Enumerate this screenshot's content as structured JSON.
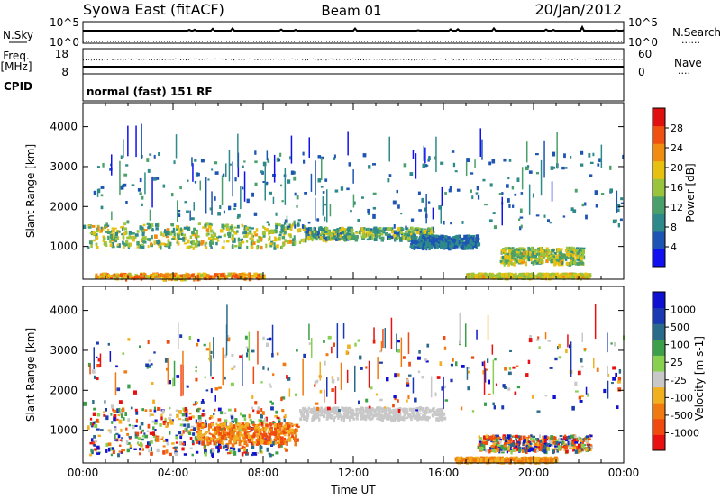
{
  "header": {
    "station": "Syowa East (fitACF)",
    "beam": "Beam 01",
    "date": "20/Jan/2012"
  },
  "nsky_panel": {
    "left_label": "N.Sky",
    "left_ticks": [
      "10^5",
      "10^0"
    ],
    "right_ticks": [
      "10^5",
      "10^0"
    ],
    "right_label": "N.Search",
    "right_legend": "......"
  },
  "freq_panel": {
    "left_label_1": "Freq.",
    "left_label_2": "[MHz]",
    "left_ticks": [
      "18",
      "8"
    ],
    "right_ticks": [
      "60",
      "0"
    ],
    "right_label": "Nave",
    "right_legend": "...."
  },
  "cpid_panel": {
    "label": "CPID",
    "mode_text": "normal (fast) 151 RF"
  },
  "x_axis": {
    "label": "Time UT",
    "ticks": [
      "00:00",
      "04:00",
      "08:00",
      "12:00",
      "16:00",
      "20:00",
      "00:00"
    ],
    "range_hours": [
      0,
      24
    ]
  },
  "colors": {
    "power": [
      "#1010f0",
      "#1e55b4",
      "#2e8a8a",
      "#4aa06a",
      "#9ac43c",
      "#e8c010",
      "#f08c10",
      "#f05010",
      "#e01010"
    ],
    "velocity": [
      "#e81010",
      "#f04a10",
      "#f07a10",
      "#f0b020",
      "#c8c8c8",
      "#88d050",
      "#3ca04a",
      "#2a6a8a",
      "#1a3ab4",
      "#1010d0"
    ]
  },
  "chart_data": [
    {
      "type": "heatmap",
      "title": "",
      "xlabel": "",
      "ylabel": "Slant Range [km]",
      "x_range_hours": [
        0,
        24
      ],
      "ylim": [
        180,
        4600
      ],
      "yticks": [
        "1000",
        "2000",
        "3000",
        "4000"
      ],
      "yticks_values": [
        1000,
        2000,
        3000,
        4000
      ],
      "colorbar": {
        "label": "Power [dB]",
        "range": [
          0,
          32
        ],
        "ticks": [
          "4",
          "8",
          "12",
          "16",
          "20",
          "24",
          "28"
        ],
        "tick_values": [
          4,
          8,
          12,
          16,
          20,
          24,
          28
        ]
      },
      "series": [
        {
          "x": [
            0.2,
            9.8
          ],
          "y": [
            1000,
            1600
          ],
          "values": [
            8,
            22
          ]
        },
        {
          "x": [
            0.5,
            8.0
          ],
          "y": [
            200,
            350
          ],
          "values": [
            16,
            28
          ]
        },
        {
          "x": [
            9.8,
            15.5
          ],
          "y": [
            1200,
            1500
          ],
          "values": [
            6,
            20
          ]
        },
        {
          "x": [
            14.5,
            17.5
          ],
          "y": [
            1000,
            1300
          ],
          "values": [
            4,
            10
          ]
        },
        {
          "x": [
            17.0,
            22.5
          ],
          "y": [
            250,
            350
          ],
          "values": [
            14,
            22
          ]
        },
        {
          "x": [
            18.5,
            22.2
          ],
          "y": [
            600,
            1000
          ],
          "values": [
            10,
            22
          ]
        },
        {
          "x": [
            0.0,
            24.0
          ],
          "y": [
            1500,
            3400
          ],
          "values": [
            4,
            12
          ]
        }
      ]
    },
    {
      "type": "heatmap",
      "title": "",
      "xlabel": "Time UT",
      "ylabel": "Slant Range [km]",
      "x_range_hours": [
        0,
        24
      ],
      "ylim": [
        180,
        4600
      ],
      "yticks": [
        "1000",
        "2000",
        "3000",
        "4000"
      ],
      "yticks_values": [
        1000,
        2000,
        3000,
        4000
      ],
      "colorbar": {
        "label": "Velocity [m s-1]",
        "ticks": [
          "-1000",
          "-500",
          "-100",
          "-25",
          "25",
          "100",
          "500",
          "1000"
        ],
        "tick_values": [
          -1000,
          -500,
          -100,
          -25,
          25,
          100,
          500,
          1000
        ]
      },
      "series": [
        {
          "x": [
            0.2,
            9.0
          ],
          "y": [
            400,
            1600
          ],
          "values": [
            -500,
            500
          ]
        },
        {
          "x": [
            5.0,
            9.5
          ],
          "y": [
            700,
            1200
          ],
          "values": [
            -500,
            -100
          ]
        },
        {
          "x": [
            9.6,
            16.0
          ],
          "y": [
            1300,
            1600
          ],
          "values": [
            -25,
            25
          ]
        },
        {
          "x": [
            16.5,
            21.0
          ],
          "y": [
            250,
            350
          ],
          "values": [
            -100,
            -25
          ]
        },
        {
          "x": [
            17.5,
            22.5
          ],
          "y": [
            500,
            900
          ],
          "values": [
            -500,
            500
          ]
        },
        {
          "x": [
            0.0,
            24.0
          ],
          "y": [
            1500,
            3400
          ],
          "values": [
            -100,
            500
          ]
        }
      ]
    }
  ]
}
